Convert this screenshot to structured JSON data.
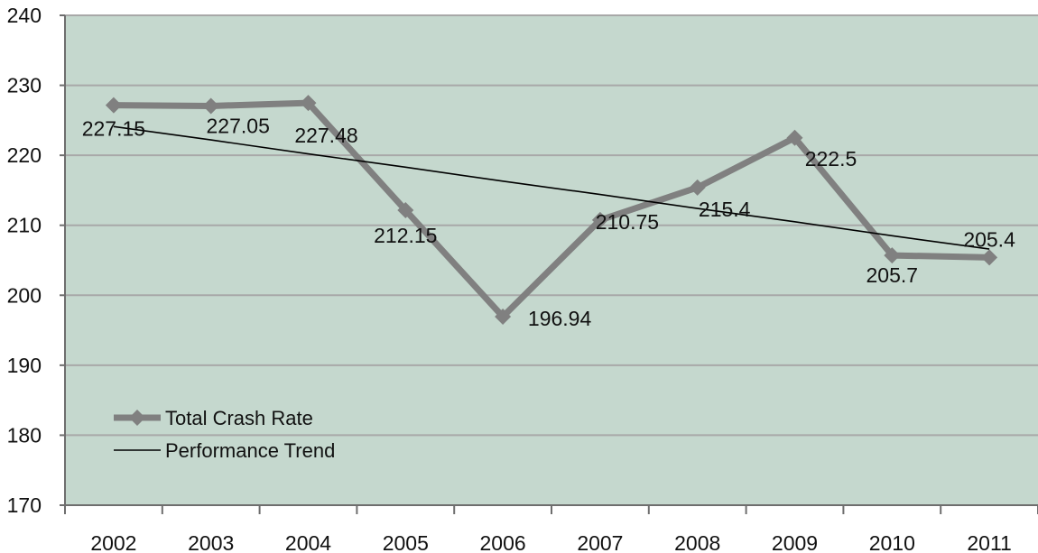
{
  "chart_data": {
    "type": "line",
    "title": "",
    "xlabel": "",
    "ylabel": "",
    "categories": [
      "2002",
      "2003",
      "2004",
      "2005",
      "2006",
      "2007",
      "2008",
      "2009",
      "2010",
      "2011"
    ],
    "ylim": [
      170,
      240
    ],
    "yticks": [
      170,
      180,
      190,
      200,
      210,
      220,
      230,
      240
    ],
    "grid": true,
    "legend_position": "lower-left",
    "colors": {
      "plot_background": "#c5d8ce",
      "gridline": "#a8a8a8",
      "crash_rate_line": "#808080",
      "trend_line": "#000000",
      "axis": "#6e6e6e"
    },
    "series": [
      {
        "name": "Total Crash Rate",
        "marker": "diamond",
        "values": [
          227.15,
          227.05,
          227.48,
          212.15,
          196.94,
          210.75,
          215.4,
          222.5,
          205.7,
          205.4
        ],
        "labels": [
          "227.15",
          "227.05",
          "227.48",
          "212.15",
          "196.94",
          "210.75",
          "215.4",
          "222.5",
          "205.7",
          "205.4"
        ]
      },
      {
        "name": "Performance Trend",
        "marker": "none",
        "values": [
          224.1,
          222.2,
          220.2,
          218.3,
          216.3,
          214.4,
          212.4,
          210.5,
          208.5,
          206.6
        ]
      }
    ]
  }
}
